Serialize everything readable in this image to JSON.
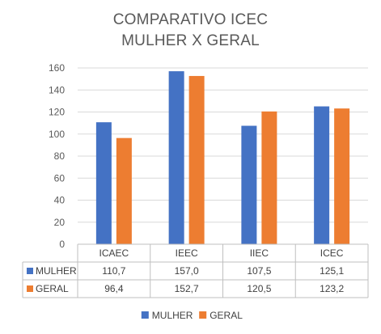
{
  "chart_data": {
    "type": "bar",
    "title": "COMPARATIVO ICEC",
    "subtitle": "MULHER X GERAL",
    "categories": [
      "ICAEC",
      "IEEC",
      "IIEC",
      "ICEC"
    ],
    "series": [
      {
        "name": "MULHER",
        "values": [
          110.7,
          157.0,
          107.5,
          125.1
        ],
        "labels": [
          "110,7",
          "157,0",
          "107,5",
          "125,1"
        ],
        "color": "#4472C4"
      },
      {
        "name": "GERAL",
        "values": [
          96.4,
          152.7,
          120.5,
          123.2
        ],
        "labels": [
          "96,4",
          "152,7",
          "120,5",
          "123,2"
        ],
        "color": "#ED7D31"
      }
    ],
    "ylim": [
      0,
      160
    ],
    "yticks": [
      0,
      20,
      40,
      60,
      80,
      100,
      120,
      140,
      160
    ],
    "grid": true,
    "legend_position": "bottom",
    "data_table": true
  }
}
